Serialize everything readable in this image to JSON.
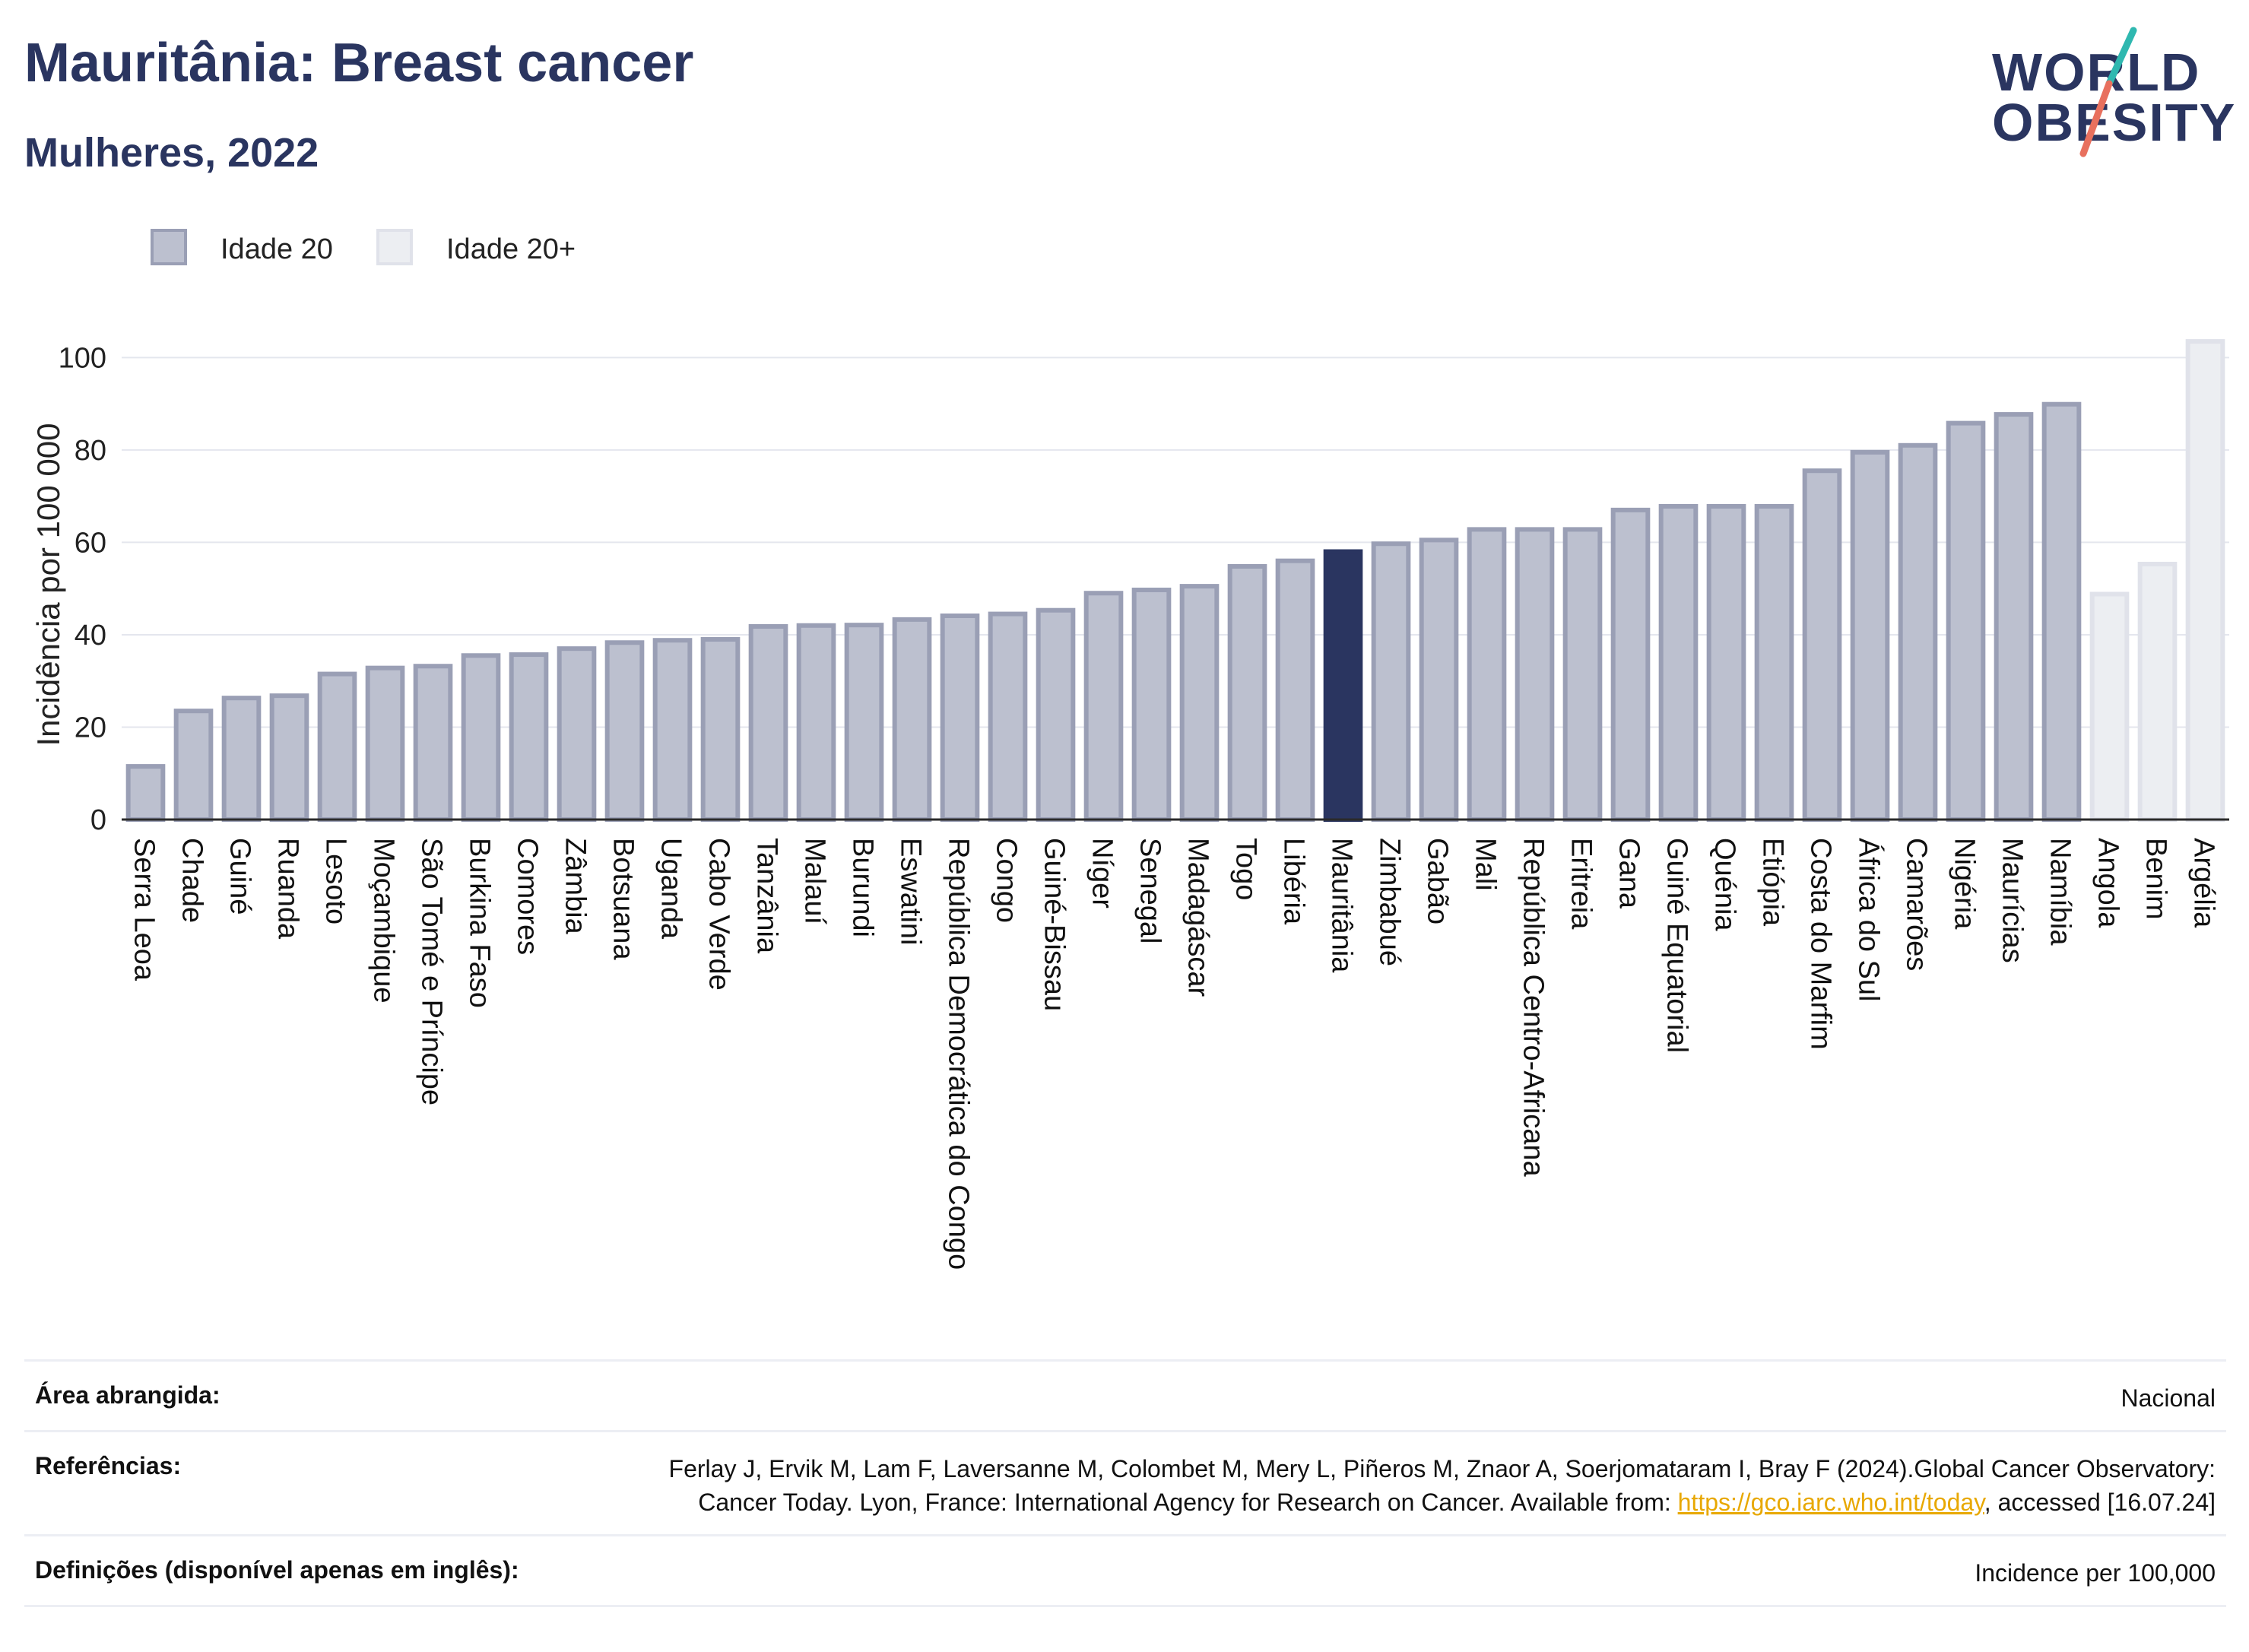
{
  "header": {
    "title": "Mauritânia: Breast cancer",
    "subtitle": "Mulheres, 2022"
  },
  "logo": {
    "line1": "WORLD",
    "line2": "OBESITY",
    "colors": {
      "text": "#2a3560",
      "slash_teal": "#2fb8b0",
      "slash_coral": "#e8705e"
    }
  },
  "legend": [
    {
      "label": "Idade 20",
      "color": "#bcc0cf",
      "border": "#9a9fb5"
    },
    {
      "label": "Idade 20+",
      "color": "#eceef2",
      "border": "#e0e2ea"
    }
  ],
  "colors": {
    "highlight": "#2a3560",
    "bar": "#bcc0cf",
    "bar_border": "#9a9fb5",
    "bar_light": "#eceef2",
    "bar_light_border": "#e0e2ea",
    "grid": "#e4e6ee"
  },
  "chart_data": {
    "type": "bar",
    "ylabel": "Incidência por 100 000",
    "ylim": [
      0,
      105
    ],
    "yticks": [
      0,
      20,
      40,
      60,
      80,
      100
    ],
    "grid": true,
    "legend_position": "top-left",
    "highlight": "Mauritânia",
    "categories": [
      "Serra Leoa",
      "Chade",
      "Guiné",
      "Ruanda",
      "Lesoto",
      "Moçambique",
      "São Tomé e Príncipe",
      "Burkina Faso",
      "Comores",
      "Zâmbia",
      "Botsuana",
      "Uganda",
      "Cabo Verde",
      "Tanzânia",
      "Malauí",
      "Burundi",
      "Eswatini",
      "República Democrática do Congo",
      "Congo",
      "Guiné-Bissau",
      "Níger",
      "Senegal",
      "Madagáscar",
      "Togo",
      "Libéria",
      "Mauritânia",
      "Zimbabué",
      "Gabão",
      "Mali",
      "República Centro-Africana",
      "Eritreia",
      "Gana",
      "Guiné Equatorial",
      "Quénia",
      "Etiópia",
      "Costa do Marfim",
      "África do Sul",
      "Camarões",
      "Nigéria",
      "Maurícias",
      "Namíbia",
      "Angola",
      "Benim",
      "Argélia"
    ],
    "values": [
      12,
      24,
      26.8,
      27.3,
      32,
      33.3,
      33.7,
      36,
      36.2,
      37.5,
      38.8,
      39.3,
      39.5,
      42.3,
      42.5,
      42.6,
      43.8,
      44.6,
      45,
      45.8,
      49.5,
      50.2,
      51,
      55.3,
      56.5,
      58.5,
      60.2,
      61,
      63.3,
      63.3,
      63.3,
      67.5,
      68.3,
      68.3,
      68.3,
      76,
      80,
      81.5,
      86.3,
      88.2,
      90.4,
      49.3,
      55.8,
      104
    ],
    "series_type": [
      "Idade 20",
      "Idade 20",
      "Idade 20",
      "Idade 20",
      "Idade 20",
      "Idade 20",
      "Idade 20",
      "Idade 20",
      "Idade 20",
      "Idade 20",
      "Idade 20",
      "Idade 20",
      "Idade 20",
      "Idade 20",
      "Idade 20",
      "Idade 20",
      "Idade 20",
      "Idade 20",
      "Idade 20",
      "Idade 20",
      "Idade 20",
      "Idade 20",
      "Idade 20",
      "Idade 20",
      "Idade 20",
      "Idade 20",
      "Idade 20",
      "Idade 20",
      "Idade 20",
      "Idade 20",
      "Idade 20",
      "Idade 20",
      "Idade 20",
      "Idade 20",
      "Idade 20",
      "Idade 20",
      "Idade 20",
      "Idade 20",
      "Idade 20",
      "Idade 20",
      "Idade 20",
      "Idade 20+",
      "Idade 20+",
      "Idade 20+"
    ]
  },
  "info": {
    "area_label": "Área abrangida:",
    "area_value": "Nacional",
    "ref_label": "Referências:",
    "ref_text": "Ferlay J, Ervik M, Lam F, Laversanne M, Colombet M, Mery L, Piñeros M, Znaor A, Soerjomataram I, Bray F (2024).Global Cancer Observatory: Cancer Today. Lyon, France: International Agency for Research on Cancer. Available from: ",
    "ref_link": "https://gco.iarc.who.int/today",
    "ref_tail": ", accessed [16.07.24]",
    "def_label": "Definições (disponível apenas em inglês):",
    "def_value": "Incidence per 100,000"
  }
}
